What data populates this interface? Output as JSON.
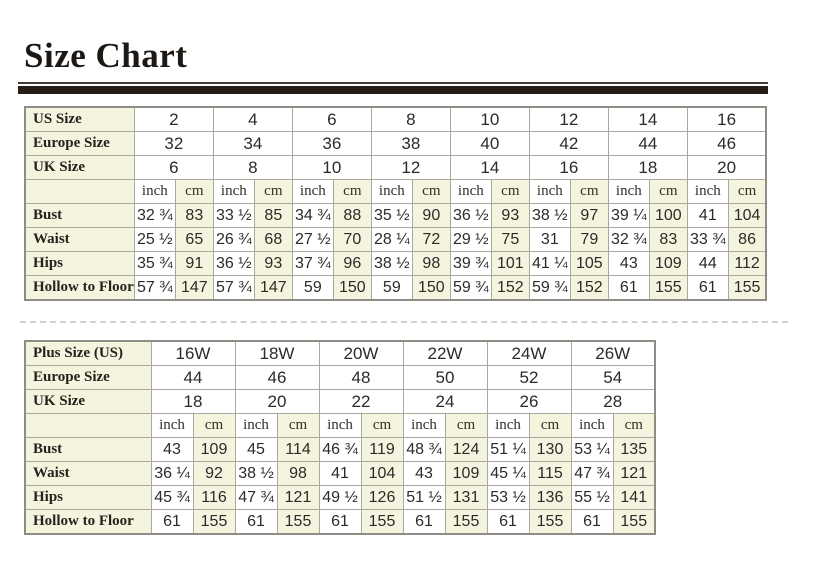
{
  "title": "Size Chart",
  "colors": {
    "cell_cream": "#f5f4de",
    "grid_border": "#aba8a0",
    "title_rule": "#251d16"
  },
  "tables": [
    {
      "name": "standard-sizes",
      "size_rows": [
        {
          "label": "US Size",
          "values": [
            "2",
            "4",
            "6",
            "8",
            "10",
            "12",
            "14",
            "16"
          ]
        },
        {
          "label": "Europe Size",
          "values": [
            "32",
            "34",
            "36",
            "38",
            "40",
            "42",
            "44",
            "46"
          ]
        },
        {
          "label": "UK Size",
          "values": [
            "6",
            "8",
            "10",
            "12",
            "14",
            "16",
            "18",
            "20"
          ]
        }
      ],
      "units_row_label": "",
      "units": [
        "inch",
        "cm",
        "inch",
        "cm",
        "inch",
        "cm",
        "inch",
        "cm",
        "inch",
        "cm",
        "inch",
        "cm",
        "inch",
        "cm",
        "inch",
        "cm"
      ],
      "measure_rows": [
        {
          "label": "Bust",
          "values": [
            "32 ¾",
            "83",
            "33 ½",
            "85",
            "34 ¾",
            "88",
            "35 ½",
            "90",
            "36 ½",
            "93",
            "38 ½",
            "97",
            "39 ¼",
            "100",
            "41",
            "104"
          ]
        },
        {
          "label": "Waist",
          "values": [
            "25 ½",
            "65",
            "26 ¾",
            "68",
            "27 ½",
            "70",
            "28 ¼",
            "72",
            "29 ½",
            "75",
            "31",
            "79",
            "32 ¾",
            "83",
            "33 ¾",
            "86"
          ]
        },
        {
          "label": "Hips",
          "values": [
            "35 ¾",
            "91",
            "36 ½",
            "93",
            "37 ¾",
            "96",
            "38 ½",
            "98",
            "39 ¾",
            "101",
            "41 ¼",
            "105",
            "43",
            "109",
            "44",
            "112"
          ]
        },
        {
          "label": "Hollow to Floor",
          "values": [
            "57 ¾",
            "147",
            "57 ¾",
            "147",
            "59",
            "150",
            "59",
            "150",
            "59 ¾",
            "152",
            "59 ¾",
            "152",
            "61",
            "155",
            "61",
            "155"
          ]
        }
      ]
    },
    {
      "name": "plus-sizes",
      "size_rows": [
        {
          "label": "Plus Size (US)",
          "values": [
            "16W",
            "18W",
            "20W",
            "22W",
            "24W",
            "26W"
          ]
        },
        {
          "label": "Europe Size",
          "values": [
            "44",
            "46",
            "48",
            "50",
            "52",
            "54"
          ]
        },
        {
          "label": "UK Size",
          "values": [
            "18",
            "20",
            "22",
            "24",
            "26",
            "28"
          ]
        }
      ],
      "units_row_label": "",
      "units": [
        "inch",
        "cm",
        "inch",
        "cm",
        "inch",
        "cm",
        "inch",
        "cm",
        "inch",
        "cm",
        "inch",
        "cm"
      ],
      "measure_rows": [
        {
          "label": "Bust",
          "values": [
            "43",
            "109",
            "45",
            "114",
            "46 ¾",
            "119",
            "48 ¾",
            "124",
            "51 ¼",
            "130",
            "53 ¼",
            "135"
          ]
        },
        {
          "label": "Waist",
          "values": [
            "36 ¼",
            "92",
            "38 ½",
            "98",
            "41",
            "104",
            "43",
            "109",
            "45 ¼",
            "115",
            "47 ¾",
            "121"
          ]
        },
        {
          "label": "Hips",
          "values": [
            "45 ¾",
            "116",
            "47 ¾",
            "121",
            "49 ½",
            "126",
            "51 ½",
            "131",
            "53 ½",
            "136",
            "55 ½",
            "141"
          ]
        },
        {
          "label": "Hollow to Floor",
          "values": [
            "61",
            "155",
            "61",
            "155",
            "61",
            "155",
            "61",
            "155",
            "61",
            "155",
            "61",
            "155"
          ]
        }
      ]
    }
  ]
}
